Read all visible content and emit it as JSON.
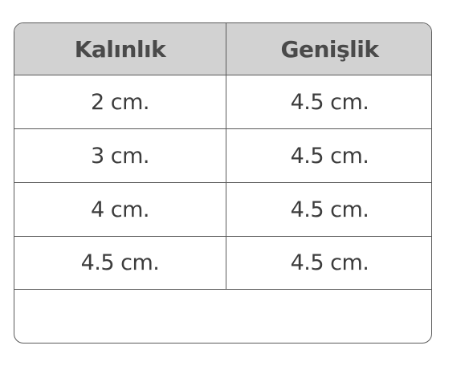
{
  "table": {
    "headers": [
      "Kalınlık",
      "Genişlik"
    ],
    "rows": [
      [
        "2 cm.",
        "4.5 cm."
      ],
      [
        "3 cm.",
        "4.5 cm."
      ],
      [
        "4 cm.",
        "4.5 cm."
      ],
      [
        "4.5 cm.",
        "4.5 cm."
      ]
    ]
  }
}
